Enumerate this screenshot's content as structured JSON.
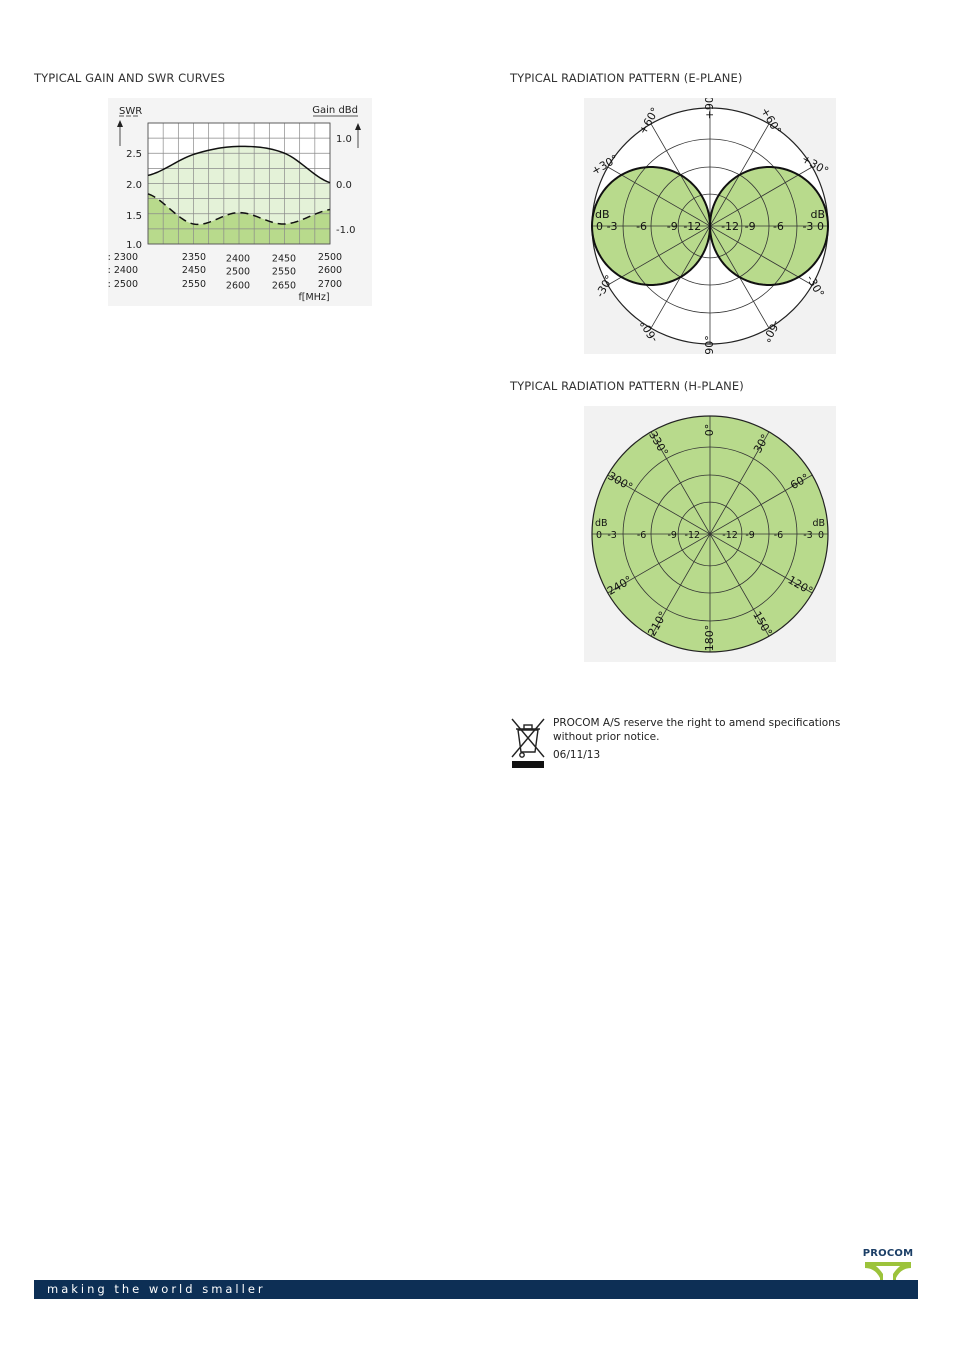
{
  "sections": {
    "gain_swr_title": "TYPICAL GAIN AND SWR CURVES",
    "e_plane_title": "TYPICAL RADIATION PATTERN (E-PLANE)",
    "h_plane_title": "TYPICAL RADIATION PATTERN (H-PLANE)"
  },
  "chart_data": [
    {
      "type": "line",
      "left_axis_label": "SWR",
      "right_axis_label": "Gain dBd",
      "xlabel": "f[MHz]",
      "swr_ticks": [
        "2.5",
        "2.0",
        "1.5",
        "1.0"
      ],
      "gain_ticks": [
        "1.0",
        "0.0",
        "-1.0"
      ],
      "x_tick_rows": [
        {
          "prefix": "/l : ",
          "values": [
            "2300",
            "2350",
            "2400",
            "2450",
            "2500"
          ]
        },
        {
          "prefix": "/m : ",
          "values": [
            "2400",
            "2450",
            "2500",
            "2550",
            "2600"
          ]
        },
        {
          "prefix": "/h : ",
          "values": [
            "2500",
            "2550",
            "2600",
            "2650",
            "2700"
          ]
        }
      ],
      "x": [
        0,
        0.25,
        0.5,
        0.75,
        1
      ],
      "series": [
        {
          "style": "solid",
          "axis": "gain",
          "values": [
            0.2,
            0.72,
            0.92,
            0.75,
            0.02
          ]
        },
        {
          "style": "dashed",
          "axis": "swr",
          "values": [
            1.83,
            1.33,
            1.52,
            1.33,
            1.57
          ]
        }
      ],
      "swr_range": [
        1.0,
        3.0
      ],
      "gain_range": [
        -1.5,
        1.5
      ]
    },
    {
      "type": "polar",
      "plane": "E-plane",
      "angle_labels": [
        "+90°",
        "+60°",
        "+60°",
        "+30°",
        "+30°",
        "-30°",
        "-30°",
        "-60°",
        "-60°",
        "-90°"
      ],
      "db_labels_left": [
        "dB",
        "0",
        "-3",
        "-6",
        "-9",
        "-12"
      ],
      "db_labels_right": [
        "-12",
        "-9",
        "-6",
        "-3",
        "0",
        "dB"
      ],
      "pattern": "figure-eight"
    },
    {
      "type": "polar",
      "plane": "H-plane",
      "angle_labels": [
        "0°",
        "30°",
        "60°",
        "120°",
        "150°",
        "180°",
        "210°",
        "240°",
        "300°",
        "330°"
      ],
      "db_labels_left": [
        "dB",
        "0",
        "-3",
        "-6",
        "-9",
        "-12"
      ],
      "db_labels_right": [
        "-12",
        "-9",
        "-6",
        "-3",
        "0",
        "dB"
      ],
      "pattern": "omnidirectional"
    }
  ],
  "notice": {
    "text": "PROCOM A/S reserve the right to amend specifications without prior notice.",
    "date": "06/11/13"
  },
  "footer": {
    "slogan": "making the world smaller",
    "brand": "PROCOM"
  },
  "colors": {
    "fill_light": "#e4f2d8",
    "fill_green": "#b8da8c",
    "footer_bar": "#0d2f55"
  }
}
